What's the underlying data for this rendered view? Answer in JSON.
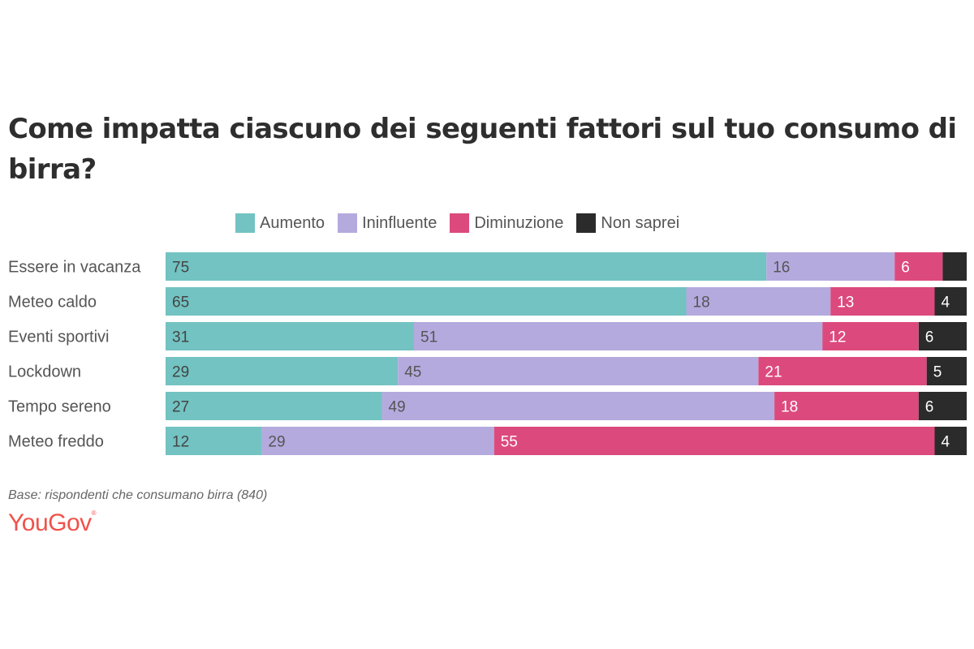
{
  "chart_data": {
    "type": "bar",
    "orientation": "horizontal",
    "stacked": true,
    "title": "Come impatta ciascuno dei seguenti fattori sul tuo consumo di birra?",
    "xlabel": "",
    "ylabel": "",
    "xlim": [
      0,
      100
    ],
    "grid": false,
    "legend_position": "top",
    "categories": [
      "Essere in vacanza",
      "Meteo caldo",
      "Eventi sportivi",
      "Lockdown",
      "Tempo sereno",
      "Meteo freddo"
    ],
    "series": [
      {
        "name": "Aumento",
        "color": "#72c3c2",
        "label_color": "#444444",
        "values": [
          75,
          65,
          31,
          29,
          27,
          12
        ]
      },
      {
        "name": "Ininfluente",
        "color": "#b5aade",
        "label_color": "#555555",
        "values": [
          16,
          18,
          51,
          45,
          49,
          29
        ]
      },
      {
        "name": "Diminuzione",
        "color": "#dc4a7d",
        "label_color": "#ffffff",
        "values": [
          6,
          13,
          12,
          21,
          18,
          55
        ]
      },
      {
        "name": "Non saprei",
        "color": "#2b2b2b",
        "label_color": "#ffffff",
        "values": [
          3,
          4,
          6,
          5,
          6,
          4
        ]
      }
    ],
    "hidden_labels": [
      [
        3,
        0
      ]
    ]
  },
  "legend": [
    {
      "label": "Aumento",
      "color": "#72c3c2"
    },
    {
      "label": "Ininfluente",
      "color": "#b5aade"
    },
    {
      "label": "Diminuzione",
      "color": "#dc4a7d"
    },
    {
      "label": "Non saprei",
      "color": "#2b2b2b"
    }
  ],
  "footnote": "Base: rispondenti che consumano birra (840)",
  "brand": {
    "name": "YouGov",
    "mark": "®",
    "color": "#f0514a"
  }
}
